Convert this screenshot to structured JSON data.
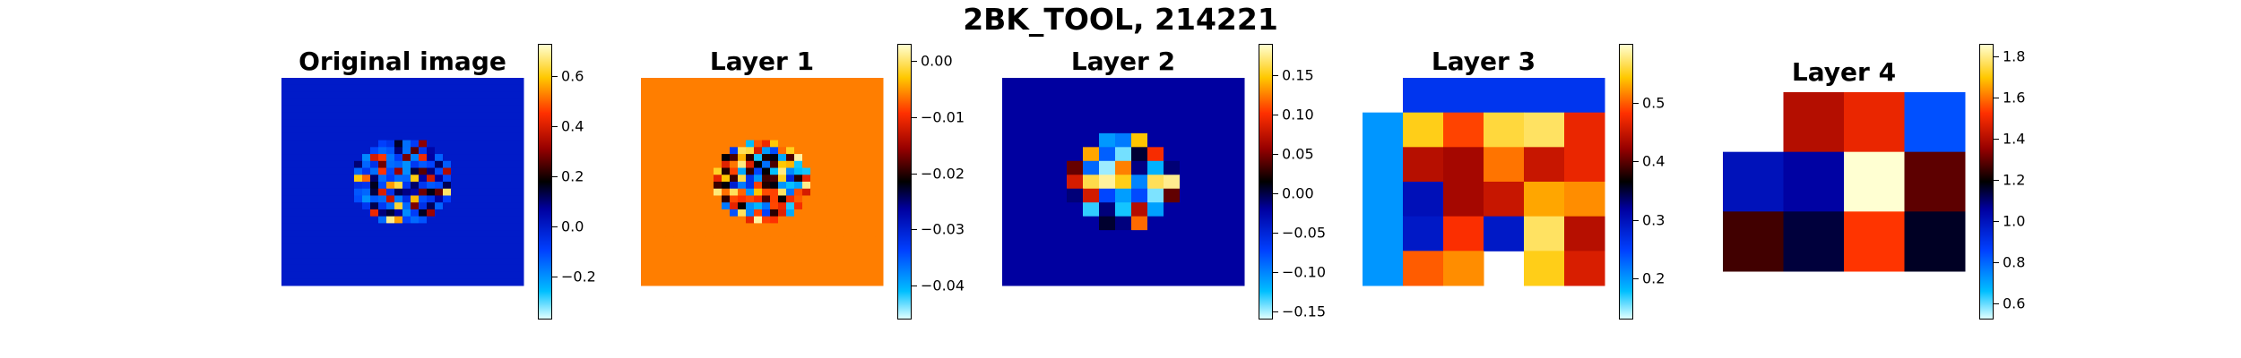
{
  "figure": {
    "suptitle": "2BK_TOOL, 214221"
  },
  "chart_data": [
    {
      "type": "heatmap",
      "title": "Original image",
      "colormap": "jet-like diverging (cyan-blue-black-red-yellow)",
      "grid": "30x30 (estimated); circular brain-slice pattern on uniform background",
      "colorbar": {
        "ticks": [
          -0.2,
          0.0,
          0.2,
          0.4,
          0.6
        ],
        "tick_labels": [
          "−0.2",
          "0.0",
          "0.2",
          "0.4",
          "0.6"
        ],
        "range": [
          -0.37,
          0.73
        ]
      },
      "background_value": 0.0,
      "axis_off": true
    },
    {
      "type": "heatmap",
      "title": "Layer 1",
      "colormap": "jet-like diverging (cyan-blue-black-red-yellow)",
      "grid": "30x30 (estimated); circular pattern on uniform background",
      "colorbar": {
        "ticks": [
          -0.04,
          -0.03,
          -0.02,
          -0.01,
          0.0
        ],
        "tick_labels": [
          "−0.04",
          "−0.03",
          "−0.02",
          "−0.01",
          "0.00"
        ],
        "range": [
          -0.046,
          0.003
        ]
      },
      "background_value": -0.006,
      "axis_off": true
    },
    {
      "type": "heatmap",
      "title": "Layer 2",
      "colormap": "jet-like diverging (cyan-blue-black-red-yellow)",
      "grid": "15x15 (estimated)",
      "colorbar": {
        "ticks": [
          -0.15,
          -0.1,
          -0.05,
          0.0,
          0.05,
          0.1,
          0.15
        ],
        "tick_labels": [
          "−0.15",
          "−0.10",
          "−0.05",
          "0.00",
          "0.05",
          "0.10",
          "0.15"
        ],
        "range": [
          -0.16,
          0.19
        ]
      },
      "background_value": -0.02,
      "axis_off": true
    },
    {
      "type": "heatmap",
      "title": "Layer 3",
      "colormap": "jet-like diverging (cyan-blue-black-red-yellow)",
      "grid": "6 columns x 6 rows",
      "values": [
        [
          null,
          0.26,
          0.26,
          0.26,
          0.26,
          0.26
        ],
        [
          0.2,
          0.55,
          0.49,
          0.56,
          0.57,
          0.47
        ],
        [
          0.2,
          0.44,
          0.43,
          0.51,
          0.45,
          0.47
        ],
        [
          0.2,
          0.3,
          0.43,
          0.45,
          0.53,
          0.52
        ],
        [
          0.2,
          0.29,
          0.48,
          0.29,
          0.57,
          0.44
        ],
        [
          0.2,
          0.5,
          0.52,
          null,
          0.55,
          0.46
        ]
      ],
      "colorbar": {
        "ticks": [
          0.2,
          0.3,
          0.4,
          0.5
        ],
        "tick_labels": [
          "0.2",
          "0.3",
          "0.4",
          "0.5"
        ],
        "range": [
          0.13,
          0.6
        ]
      },
      "axis_off": true
    },
    {
      "type": "heatmap",
      "title": "Layer 4",
      "colormap": "jet-like diverging (cyan-blue-black-red-yellow)",
      "grid": "4 columns x 3 rows",
      "values": [
        [
          null,
          1.4,
          1.49,
          0.83
        ],
        [
          1.0,
          1.05,
          1.86,
          1.29
        ],
        [
          1.26,
          1.14,
          1.53,
          1.16
        ]
      ],
      "colorbar": {
        "ticks": [
          0.6,
          0.8,
          1.0,
          1.2,
          1.4,
          1.6,
          1.8
        ],
        "tick_labels": [
          "0.6",
          "0.8",
          "1.0",
          "1.2",
          "1.4",
          "1.6",
          "1.8"
        ],
        "range": [
          0.52,
          1.86
        ]
      },
      "axis_off": true
    }
  ]
}
